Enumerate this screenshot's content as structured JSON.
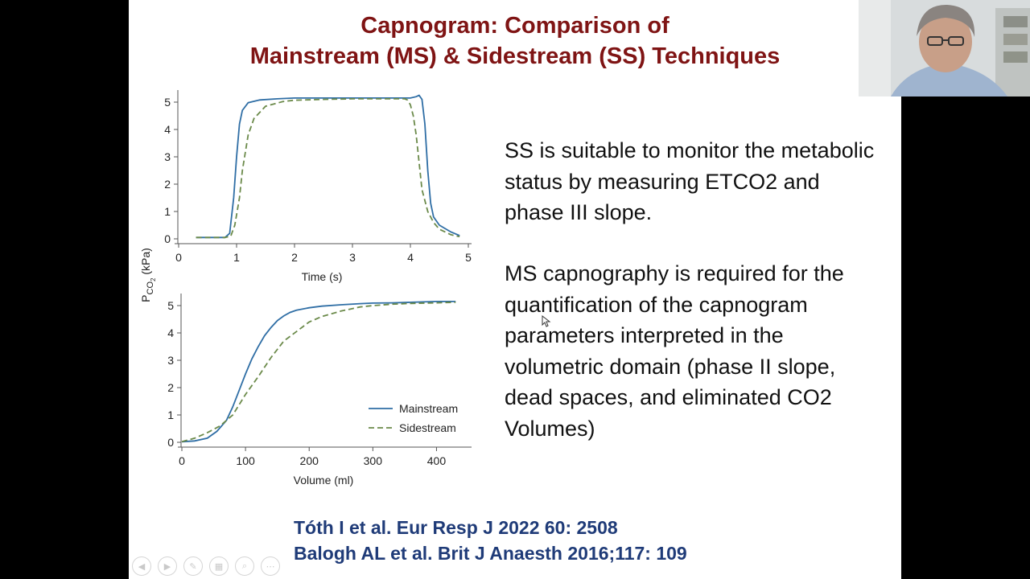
{
  "slide": {
    "title_line1": "Capnogram: Comparison of",
    "title_line2": "Mainstream (MS) & Sidestream (SS) Techniques",
    "paragraph1": "SS is suitable to monitor the metabolic status by measuring ETCO2 and phase III slope.",
    "paragraph2": "MS capnography is required for the quantification of the capnogram parameters interpreted in the volumetric domain (phase II slope, dead spaces, and eliminated CO2 Volumes)",
    "reference1": "Tóth I et al. Eur Resp J 2022 60: 2508",
    "reference2": "Balogh AL et al. Brit J Anaesth 2016;117: 109"
  },
  "colors": {
    "title": "#7f1414",
    "reference": "#1f3b78",
    "mainstream": "#2f6ea5",
    "sidestream": "#6b8a4a"
  },
  "toolbar": {
    "icons": [
      "prev-icon",
      "next-icon",
      "pen-icon",
      "slides-icon",
      "zoom-icon",
      "more-icon"
    ]
  },
  "chart_data": [
    {
      "type": "line",
      "xlabel": "Time (s)",
      "ylabel": "PCO2 (kPa)",
      "xlim": [
        0,
        5
      ],
      "ylim": [
        0,
        5
      ],
      "xticks": [
        "0",
        "1",
        "2",
        "3",
        "4",
        "5"
      ],
      "yticks": [
        "0",
        "1",
        "2",
        "3",
        "4",
        "5"
      ],
      "series": [
        {
          "name": "Mainstream",
          "x": [
            0.3,
            0.8,
            0.88,
            0.95,
            1.0,
            1.05,
            1.1,
            1.2,
            1.4,
            1.7,
            2.0,
            2.5,
            3.0,
            3.5,
            4.0,
            4.1,
            4.15,
            4.2,
            4.25,
            4.3,
            4.35,
            4.4,
            4.5,
            4.7,
            4.85
          ],
          "y": [
            0.05,
            0.05,
            0.2,
            1.5,
            3.0,
            4.2,
            4.7,
            4.98,
            5.08,
            5.12,
            5.15,
            5.15,
            5.15,
            5.15,
            5.15,
            5.2,
            5.25,
            5.1,
            4.2,
            2.5,
            1.3,
            0.8,
            0.5,
            0.25,
            0.12
          ]
        },
        {
          "name": "Sidestream",
          "x": [
            0.3,
            0.8,
            0.9,
            0.97,
            1.05,
            1.1,
            1.2,
            1.3,
            1.5,
            1.8,
            2.0,
            2.5,
            3.0,
            3.5,
            3.9,
            3.95,
            4.0,
            4.05,
            4.1,
            4.15,
            4.2,
            4.3,
            4.4,
            4.5,
            4.7,
            4.85
          ],
          "y": [
            0.05,
            0.05,
            0.1,
            0.5,
            1.5,
            2.5,
            3.8,
            4.4,
            4.85,
            5.02,
            5.07,
            5.1,
            5.12,
            5.12,
            5.12,
            5.08,
            4.9,
            4.5,
            3.8,
            2.8,
            1.8,
            1.0,
            0.6,
            0.35,
            0.15,
            0.08
          ]
        }
      ]
    },
    {
      "type": "line",
      "xlabel": "Volume (ml)",
      "ylabel": "PCO2 (kPa)",
      "xlim": [
        0,
        450
      ],
      "ylim": [
        0,
        5
      ],
      "xticks": [
        "0",
        "100",
        "200",
        "300",
        "400"
      ],
      "yticks": [
        "0",
        "1",
        "2",
        "3",
        "4",
        "5"
      ],
      "legend_position": "bottom-right",
      "series": [
        {
          "name": "Mainstream",
          "x": [
            0,
            20,
            40,
            55,
            70,
            80,
            90,
            100,
            110,
            120,
            130,
            140,
            150,
            160,
            170,
            180,
            200,
            220,
            250,
            280,
            300,
            330,
            360,
            400,
            430
          ],
          "y": [
            0.02,
            0.05,
            0.15,
            0.4,
            0.8,
            1.3,
            1.9,
            2.5,
            3.05,
            3.5,
            3.9,
            4.2,
            4.45,
            4.62,
            4.75,
            4.83,
            4.92,
            4.98,
            5.03,
            5.07,
            5.09,
            5.1,
            5.12,
            5.15,
            5.15
          ]
        },
        {
          "name": "Sidestream",
          "x": [
            0,
            20,
            40,
            60,
            80,
            100,
            120,
            140,
            160,
            180,
            200,
            220,
            250,
            280,
            300,
            330,
            360,
            400,
            430
          ],
          "y": [
            0.02,
            0.15,
            0.35,
            0.6,
            1.0,
            1.75,
            2.4,
            3.1,
            3.7,
            4.05,
            4.4,
            4.6,
            4.8,
            4.95,
            5.0,
            5.05,
            5.08,
            5.1,
            5.12
          ]
        }
      ]
    }
  ]
}
